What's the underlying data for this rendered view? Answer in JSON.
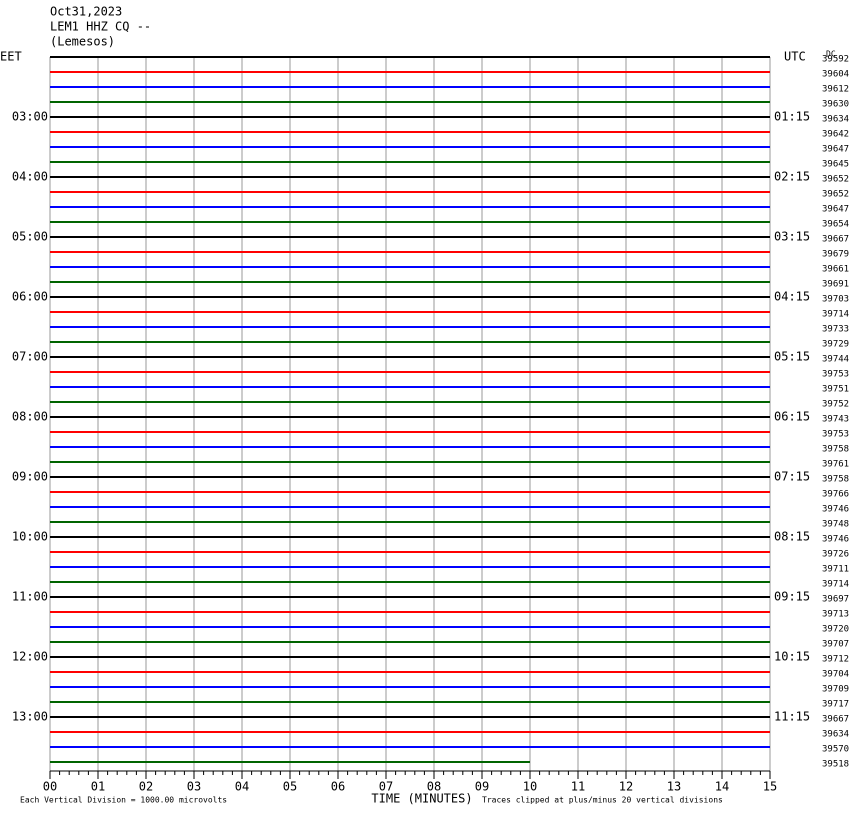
{
  "chart_data": {
    "type": "helicorder",
    "title_lines": [
      "Oct31,2023",
      "LEM1 HHZ CQ --",
      "(Lemesos)"
    ],
    "left_zone": "EET",
    "right_zone": "UTC",
    "dc_header": "DC",
    "left_labels": [
      "03:00",
      "04:00",
      "05:00",
      "06:00",
      "07:00",
      "08:00",
      "09:00",
      "10:00",
      "11:00",
      "12:00",
      "13:00"
    ],
    "right_labels": [
      "01:15",
      "02:15",
      "03:15",
      "04:15",
      "05:15",
      "06:15",
      "07:15",
      "08:15",
      "09:15",
      "10:15",
      "11:15"
    ],
    "trace_labels": [
      "39592",
      "39604",
      "39612",
      "39630",
      "39634",
      "39642",
      "39647",
      "39645",
      "39652",
      "39652",
      "39647",
      "39654",
      "39667",
      "39679",
      "39661",
      "39691",
      "39703",
      "39714",
      "39733",
      "39729",
      "39744",
      "39753",
      "39751",
      "39752",
      "39743",
      "39753",
      "39758",
      "39761",
      "39758",
      "39766",
      "39746",
      "39748",
      "39746",
      "39726",
      "39711",
      "39714",
      "39697",
      "39713",
      "39720",
      "39707",
      "39712",
      "39704",
      "39709",
      "39717",
      "39667",
      "39634",
      "39570",
      "39518"
    ],
    "colors": [
      "#000000",
      "#ff0000",
      "#0000ff",
      "#006400"
    ],
    "xlim": [
      0,
      15
    ],
    "xticks": [
      {
        "value": 0,
        "label": "00"
      },
      {
        "value": 1,
        "label": "01"
      },
      {
        "value": 2,
        "label": "02"
      },
      {
        "value": 3,
        "label": "03"
      },
      {
        "value": 4,
        "label": "04"
      },
      {
        "value": 5,
        "label": "05"
      },
      {
        "value": 6,
        "label": "06"
      },
      {
        "value": 7,
        "label": "07"
      },
      {
        "value": 8,
        "label": "08"
      },
      {
        "value": 9,
        "label": "09"
      },
      {
        "value": 10,
        "label": "10"
      },
      {
        "value": 11,
        "label": "11"
      },
      {
        "value": 12,
        "label": "12"
      },
      {
        "value": 13,
        "label": "13"
      },
      {
        "value": 14,
        "label": "14"
      },
      {
        "value": 15,
        "label": "15"
      }
    ],
    "last_trace_end": 10,
    "xlabel": "TIME (MINUTES)",
    "scale_note": "Each Vertical Division = 1000.00 microvolts",
    "clip_note": "Traces clipped at plus/minus 20 vertical divisions"
  }
}
